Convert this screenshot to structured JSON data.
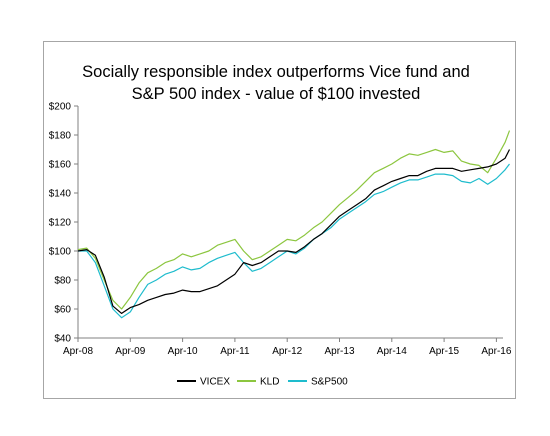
{
  "chart_data": {
    "type": "line",
    "title_lines": [
      "Socially responsible index outperforms Vice fund and",
      "S&P 500 index - value of $100 invested"
    ],
    "xlabel": "",
    "ylabel": "",
    "x_tick_labels": [
      "Apr-08",
      "Apr-09",
      "Apr-10",
      "Apr-11",
      "Apr-12",
      "Apr-13",
      "Apr-14",
      "Apr-15",
      "Apr-16"
    ],
    "y_tick_labels": [
      "$40",
      "$60",
      "$80",
      "$100",
      "$120",
      "$140",
      "$160",
      "$180",
      "$200"
    ],
    "ylim": [
      40,
      200
    ],
    "y_ticks": [
      40,
      60,
      80,
      100,
      120,
      140,
      160,
      180,
      200
    ],
    "grid": false,
    "legend_position": "bottom",
    "x": [
      "Apr-08",
      "Jun-08",
      "Aug-08",
      "Oct-08",
      "Dec-08",
      "Feb-09",
      "Apr-09",
      "Jun-09",
      "Aug-09",
      "Oct-09",
      "Dec-09",
      "Feb-10",
      "Apr-10",
      "Jun-10",
      "Aug-10",
      "Oct-10",
      "Dec-10",
      "Feb-11",
      "Apr-11",
      "Jun-11",
      "Aug-11",
      "Oct-11",
      "Dec-11",
      "Feb-12",
      "Apr-12",
      "Jun-12",
      "Aug-12",
      "Oct-12",
      "Dec-12",
      "Feb-13",
      "Apr-13",
      "Jun-13",
      "Aug-13",
      "Oct-13",
      "Dec-13",
      "Feb-14",
      "Apr-14",
      "Jun-14",
      "Aug-14",
      "Oct-14",
      "Dec-14",
      "Feb-15",
      "Apr-15",
      "Jun-15",
      "Aug-15",
      "Oct-15",
      "Dec-15",
      "Feb-16",
      "Apr-16",
      "Jun-16",
      "Jul-16"
    ],
    "series": [
      {
        "name": "VICEX",
        "color": "#000000",
        "values": [
          100,
          101,
          97,
          82,
          62,
          57,
          61,
          63,
          66,
          68,
          70,
          71,
          73,
          72,
          72,
          74,
          76,
          80,
          84,
          92,
          90,
          92,
          96,
          100,
          100,
          99,
          103,
          108,
          112,
          118,
          124,
          128,
          132,
          136,
          142,
          145,
          148,
          150,
          152,
          152,
          155,
          157,
          157,
          157,
          155,
          156,
          157,
          158,
          160,
          164,
          170
        ]
      },
      {
        "name": "KLD",
        "color": "#8cc63f",
        "values": [
          101,
          102,
          95,
          80,
          66,
          60,
          68,
          78,
          85,
          88,
          92,
          94,
          98,
          96,
          98,
          100,
          104,
          106,
          108,
          100,
          94,
          96,
          100,
          104,
          108,
          107,
          111,
          116,
          120,
          126,
          132,
          137,
          142,
          148,
          154,
          157,
          160,
          164,
          167,
          166,
          168,
          170,
          168,
          169,
          162,
          160,
          159,
          154,
          164,
          175,
          183
        ]
      },
      {
        "name": "S&P500",
        "color": "#1ebccd",
        "values": [
          100,
          100,
          92,
          76,
          60,
          54,
          58,
          68,
          77,
          80,
          84,
          86,
          89,
          87,
          88,
          92,
          95,
          97,
          99,
          92,
          86,
          88,
          92,
          96,
          100,
          98,
          102,
          108,
          112,
          116,
          122,
          126,
          130,
          134,
          139,
          141,
          144,
          147,
          149,
          149,
          151,
          153,
          153,
          152,
          148,
          147,
          150,
          146,
          150,
          156,
          160
        ]
      }
    ]
  }
}
